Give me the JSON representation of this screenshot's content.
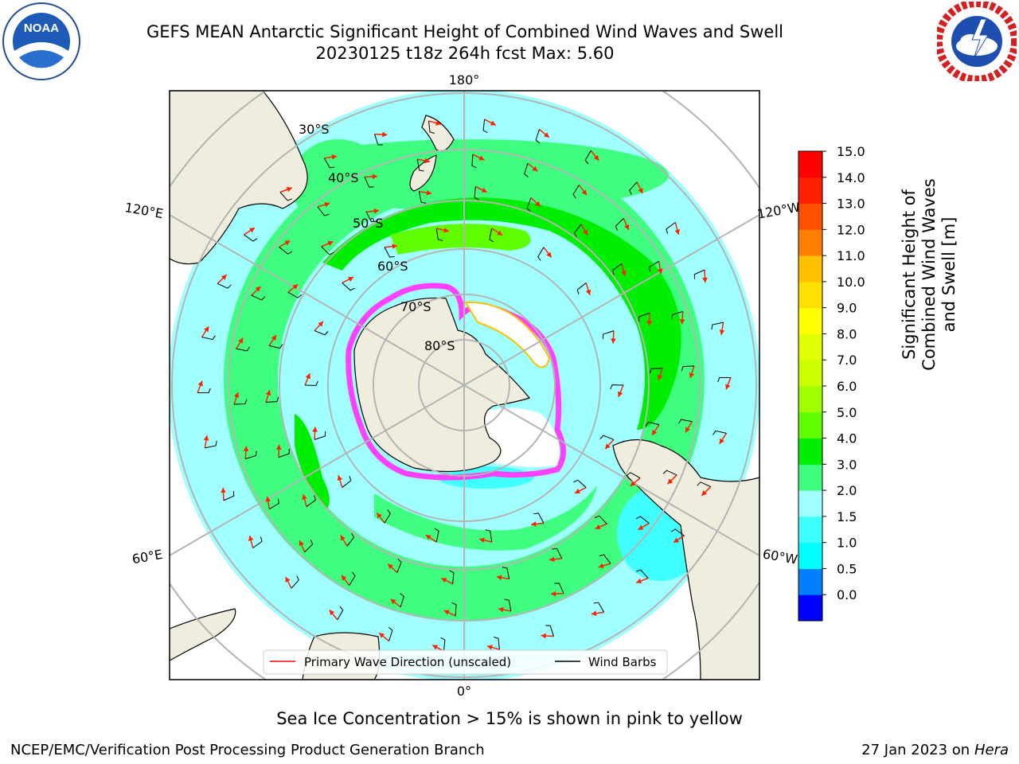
{
  "header": {
    "title_line1": "GEFS MEAN Antarctic Significant Height of Combined Wind Waves and Swell",
    "title_line2": "20230125 t18z 264h fcst   Max: 5.60"
  },
  "logos": {
    "left": "NOAA",
    "right": "NATIONAL WEATHER SERVICE"
  },
  "map": {
    "longitude_labels": [
      "180°",
      "120°E",
      "120°W",
      "60°E",
      "60°W",
      "0°"
    ],
    "latitude_labels": [
      "30°S",
      "40°S",
      "50°S",
      "60°S",
      "70°S",
      "80°S"
    ],
    "legend": {
      "wave_direction": "Primary Wave Direction (unscaled)",
      "wind_barbs": "Wind Barbs"
    }
  },
  "colorbar": {
    "title": "Significant Height of Combined Wind Waves and Swell [m]",
    "ticks": [
      "15.0",
      "14.0",
      "13.0",
      "12.0",
      "11.0",
      "10.0",
      "9.0",
      "8.0",
      "7.0",
      "6.0",
      "5.0",
      "4.0",
      "3.0",
      "2.0",
      "1.5",
      "1.0",
      "0.5",
      "0.0"
    ],
    "colors": [
      "#0000ff",
      "#0080ff",
      "#00ffff",
      "#40ffff",
      "#a0ffff",
      "#40ff80",
      "#00ee00",
      "#60ff00",
      "#a0ff00",
      "#ccff00",
      "#e0ff00",
      "#ffff00",
      "#ffe000",
      "#ffc000",
      "#ff8000",
      "#ff5000",
      "#ff2000",
      "#ff0000"
    ]
  },
  "colors": {
    "land": "#efedde",
    "ocean_low": "#a0ffff",
    "ocean_mid": "#40ff80",
    "ocean_high": "#60ff00",
    "sea_ice": "#ff40ff",
    "arrow": "#ff2000"
  },
  "footer": {
    "subtitle": "Sea Ice Concentration > 15% is shown in pink to yellow",
    "left": "NCEP/EMC/Verification Post Processing Product Generation Branch",
    "right_date": "27 Jan 2023 on ",
    "right_machine": "Hera"
  }
}
